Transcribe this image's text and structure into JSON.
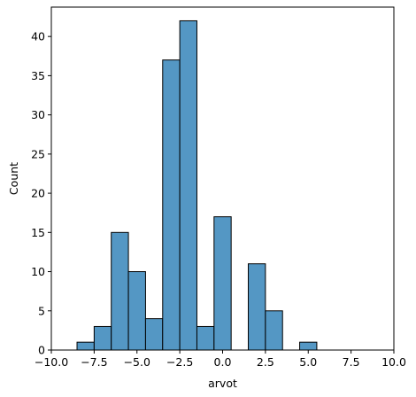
{
  "chart_data": {
    "type": "bar",
    "title": "",
    "xlabel": "arvot",
    "ylabel": "Count",
    "xlim": [
      -10,
      10
    ],
    "ylim": [
      0,
      43.75
    ],
    "bin_width": 1,
    "bins": [
      {
        "start": -8.5,
        "end": -7.5,
        "count": 1
      },
      {
        "start": -7.5,
        "end": -6.5,
        "count": 3
      },
      {
        "start": -6.5,
        "end": -5.5,
        "count": 15
      },
      {
        "start": -5.5,
        "end": -4.5,
        "count": 10
      },
      {
        "start": -4.5,
        "end": -3.5,
        "count": 4
      },
      {
        "start": -3.5,
        "end": -2.5,
        "count": 37
      },
      {
        "start": -2.5,
        "end": -1.5,
        "count": 42
      },
      {
        "start": -1.5,
        "end": -0.5,
        "count": 3
      },
      {
        "start": -0.5,
        "end": 0.5,
        "count": 17
      },
      {
        "start": 0.5,
        "end": 1.5,
        "count": 0
      },
      {
        "start": 1.5,
        "end": 2.5,
        "count": 11
      },
      {
        "start": 2.5,
        "end": 3.5,
        "count": 5
      },
      {
        "start": 3.5,
        "end": 4.5,
        "count": 0
      },
      {
        "start": 4.5,
        "end": 5.5,
        "count": 1
      }
    ],
    "x_ticks": [
      {
        "value": -10,
        "label": "−10.0"
      },
      {
        "value": -7.5,
        "label": "−7.5"
      },
      {
        "value": -5,
        "label": "−5.0"
      },
      {
        "value": -2.5,
        "label": "−2.5"
      },
      {
        "value": 0,
        "label": "0.0"
      },
      {
        "value": 2.5,
        "label": "2.5"
      },
      {
        "value": 5,
        "label": "5.0"
      },
      {
        "value": 7.5,
        "label": "7.5"
      },
      {
        "value": 10,
        "label": "10.0"
      }
    ],
    "y_ticks": [
      {
        "value": 0,
        "label": "0"
      },
      {
        "value": 5,
        "label": "5"
      },
      {
        "value": 10,
        "label": "10"
      },
      {
        "value": 15,
        "label": "15"
      },
      {
        "value": 20,
        "label": "20"
      },
      {
        "value": 25,
        "label": "25"
      },
      {
        "value": 30,
        "label": "30"
      },
      {
        "value": 35,
        "label": "35"
      },
      {
        "value": 40,
        "label": "40"
      }
    ],
    "grid": false,
    "legend": "none",
    "bar_color": "#5497c4",
    "edge_color": "#000000"
  }
}
